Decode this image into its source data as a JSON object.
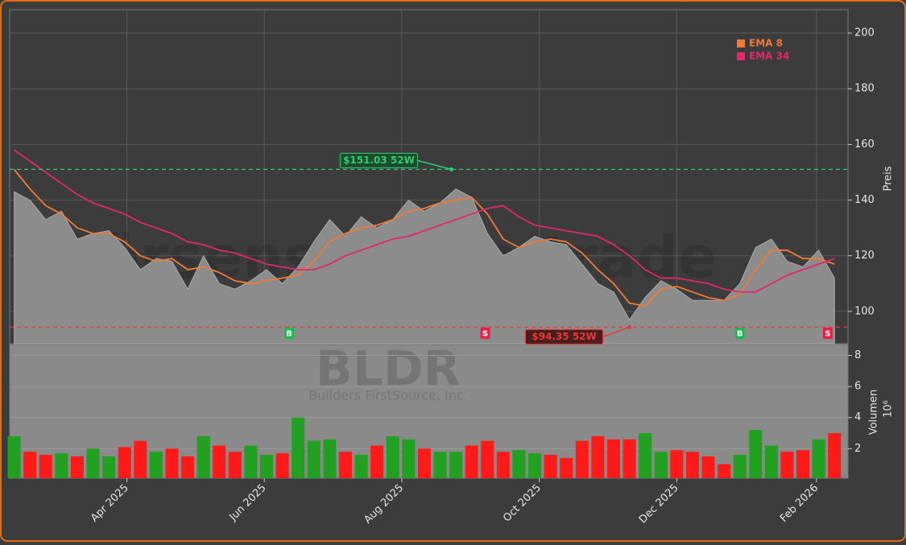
{
  "watermark": {
    "site": "Börsensignale.trade",
    "ticker": "BLDR",
    "company": "Builders FirstSource, Inc."
  },
  "chart_data": [
    {
      "type": "line",
      "ylabel": "Preis",
      "x": [
        "2025-02-10",
        "2025-02-17",
        "2025-02-24",
        "2025-03-03",
        "2025-03-10",
        "2025-03-17",
        "2025-03-24",
        "2025-03-31",
        "2025-04-07",
        "2025-04-14",
        "2025-04-21",
        "2025-04-28",
        "2025-05-05",
        "2025-05-12",
        "2025-05-19",
        "2025-05-26",
        "2025-06-02",
        "2025-06-09",
        "2025-06-16",
        "2025-06-23",
        "2025-06-30",
        "2025-07-07",
        "2025-07-14",
        "2025-07-21",
        "2025-07-28",
        "2025-08-04",
        "2025-08-11",
        "2025-08-18",
        "2025-08-25",
        "2025-09-01",
        "2025-09-08",
        "2025-09-15",
        "2025-09-22",
        "2025-09-29",
        "2025-10-06",
        "2025-10-13",
        "2025-10-20",
        "2025-10-27",
        "2025-11-03",
        "2025-11-10",
        "2025-11-17",
        "2025-11-24",
        "2025-12-01",
        "2025-12-08",
        "2025-12-15",
        "2025-12-22",
        "2025-12-29",
        "2026-01-05",
        "2026-01-12",
        "2026-01-19",
        "2026-01-26",
        "2026-02-02",
        "2026-02-09"
      ],
      "xlim": [
        "2025-02-08",
        "2026-02-15"
      ],
      "xticks": [
        {
          "value": "2025-04-01",
          "label": "Apr 2025"
        },
        {
          "value": "2025-06-01",
          "label": "Jun 2025"
        },
        {
          "value": "2025-08-01",
          "label": "Aug 2025"
        },
        {
          "value": "2025-10-01",
          "label": "Oct 2025"
        },
        {
          "value": "2025-12-01",
          "label": "Dec 2025"
        },
        {
          "value": "2026-02-01",
          "label": "Feb 2026"
        }
      ],
      "ylim": [
        88.4,
        208.4
      ],
      "yticks": [
        100,
        120,
        140,
        160,
        180,
        200
      ],
      "grid": true,
      "series": [
        {
          "color": "#8c8c8c",
          "area": true,
          "values": [
            143,
            140,
            133,
            136,
            126,
            128,
            129,
            123,
            115,
            119,
            118,
            108,
            120,
            110,
            108,
            111,
            115,
            110,
            116,
            125,
            133,
            127,
            134,
            130,
            133,
            140,
            136,
            139,
            144,
            141,
            128,
            120,
            123,
            127,
            125,
            124,
            117,
            110,
            107,
            97,
            105,
            111,
            108,
            104,
            104,
            104,
            110,
            123,
            126,
            118,
            116,
            122,
            112
          ]
        },
        {
          "name": "EMA 8",
          "color": "#f07a3a",
          "values": [
            151,
            144,
            138,
            135,
            130,
            128,
            128,
            125,
            120,
            118,
            119,
            115,
            116,
            114,
            111,
            110,
            111,
            112,
            113,
            118,
            125,
            128,
            130,
            131,
            133,
            136,
            137,
            139,
            140,
            141,
            135,
            126,
            123,
            125,
            126,
            125,
            121,
            115,
            110,
            103,
            102,
            108,
            109,
            107,
            105,
            104,
            106,
            115,
            122,
            122,
            119,
            119,
            117
          ]
        },
        {
          "name": "EMA 34",
          "color": "#e0286a",
          "values": [
            158,
            154,
            150,
            146,
            142,
            139,
            137,
            135,
            132,
            130,
            128,
            125,
            124,
            122,
            121,
            119,
            117,
            116,
            115,
            115,
            117,
            120,
            122,
            124,
            126,
            127,
            129,
            131,
            133,
            135,
            137,
            138,
            134,
            131,
            130,
            129,
            128,
            127,
            124,
            120,
            115,
            112,
            112,
            111,
            110,
            108,
            107,
            107,
            110,
            113,
            115,
            117,
            119
          ]
        }
      ],
      "legend": "upper right",
      "annotations": [
        {
          "text": "$151.03 52W",
          "value": 151.03,
          "x": "2025-08-23",
          "color": "#2ecc71"
        },
        {
          "text": "$94.35 52W",
          "value": 94.35,
          "x": "2025-11-10",
          "color": "#e53935"
        }
      ],
      "signals": [
        {
          "label": "B",
          "x": "2025-06-12",
          "color": "#1db954"
        },
        {
          "label": "S",
          "x": "2025-09-07",
          "color": "#e91e4f"
        },
        {
          "label": "B",
          "x": "2025-12-29",
          "color": "#1db954"
        },
        {
          "label": "S",
          "x": "2026-02-06",
          "color": "#e91e4f"
        }
      ]
    },
    {
      "type": "bar",
      "ylabel": "Volumen",
      "yunit": "10⁶",
      "x": [
        "2025-02-10",
        "2025-02-17",
        "2025-02-24",
        "2025-03-03",
        "2025-03-10",
        "2025-03-17",
        "2025-03-24",
        "2025-03-31",
        "2025-04-07",
        "2025-04-14",
        "2025-04-21",
        "2025-04-28",
        "2025-05-05",
        "2025-05-12",
        "2025-05-19",
        "2025-05-26",
        "2025-06-02",
        "2025-06-09",
        "2025-06-16",
        "2025-06-23",
        "2025-06-30",
        "2025-07-07",
        "2025-07-14",
        "2025-07-21",
        "2025-07-28",
        "2025-08-04",
        "2025-08-11",
        "2025-08-18",
        "2025-08-25",
        "2025-09-01",
        "2025-09-08",
        "2025-09-15",
        "2025-09-22",
        "2025-09-29",
        "2025-10-06",
        "2025-10-13",
        "2025-10-20",
        "2025-10-27",
        "2025-11-03",
        "2025-11-10",
        "2025-11-17",
        "2025-11-24",
        "2025-12-01",
        "2025-12-08",
        "2025-12-15",
        "2025-12-22",
        "2025-12-29",
        "2026-01-05",
        "2026-01-12",
        "2026-01-19",
        "2026-01-26",
        "2026-02-02",
        "2026-02-09"
      ],
      "ylim": [
        0.1,
        8.7
      ],
      "yticks": [
        2,
        4,
        6,
        8
      ],
      "grid": true,
      "values": [
        2.8,
        1.8,
        1.6,
        1.7,
        1.5,
        2.0,
        1.5,
        2.1,
        2.5,
        1.8,
        2.0,
        1.5,
        2.8,
        2.2,
        1.8,
        2.2,
        1.6,
        1.7,
        4.0,
        2.5,
        2.6,
        1.8,
        1.6,
        2.2,
        2.8,
        2.6,
        2.0,
        1.8,
        1.8,
        2.2,
        2.5,
        1.8,
        1.9,
        1.7,
        1.6,
        1.4,
        2.5,
        2.8,
        2.6,
        2.6,
        3.0,
        1.8,
        1.9,
        1.8,
        1.5,
        1.0,
        1.6,
        3.2,
        2.2,
        1.8,
        1.9,
        2.6,
        3.0
      ],
      "colors": [
        "#22a022",
        "#ff1a1a",
        "#ff1a1a",
        "#22a022",
        "#ff1a1a",
        "#22a022",
        "#22a022",
        "#ff1a1a",
        "#ff1a1a",
        "#22a022",
        "#ff1a1a",
        "#ff1a1a",
        "#22a022",
        "#ff1a1a",
        "#ff1a1a",
        "#22a022",
        "#22a022",
        "#ff1a1a",
        "#22a022",
        "#22a022",
        "#22a022",
        "#ff1a1a",
        "#22a022",
        "#ff1a1a",
        "#22a022",
        "#22a022",
        "#ff1a1a",
        "#22a022",
        "#22a022",
        "#ff1a1a",
        "#ff1a1a",
        "#ff1a1a",
        "#22a022",
        "#22a022",
        "#ff1a1a",
        "#ff1a1a",
        "#ff1a1a",
        "#ff1a1a",
        "#ff1a1a",
        "#ff1a1a",
        "#22a022",
        "#22a022",
        "#ff1a1a",
        "#ff1a1a",
        "#ff1a1a",
        "#ff1a1a",
        "#22a022",
        "#22a022",
        "#22a022",
        "#ff1a1a",
        "#ff1a1a",
        "#22a022",
        "#ff1a1a"
      ]
    }
  ]
}
